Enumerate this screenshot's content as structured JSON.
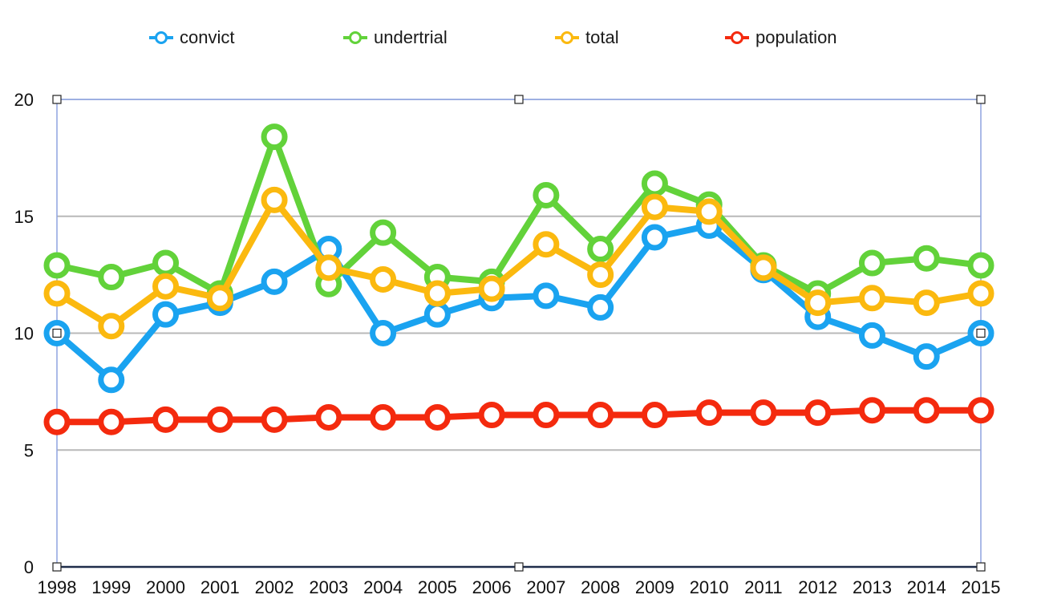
{
  "chart_data": {
    "type": "line",
    "title": "",
    "xlabel": "",
    "ylabel": "",
    "x": [
      "1998",
      "1999",
      "2000",
      "2001",
      "2002",
      "2003",
      "2004",
      "2005",
      "2006",
      "2007",
      "2008",
      "2009",
      "2010",
      "2011",
      "2012",
      "2013",
      "2014",
      "2015"
    ],
    "ylim": [
      0,
      20
    ],
    "yticks": [
      "0",
      "5",
      "10",
      "15",
      "20"
    ],
    "grid": true,
    "legend_position": "top",
    "series": [
      {
        "name": "convict",
        "color": "#1aa3f0",
        "values": [
          10.0,
          8.0,
          10.8,
          11.3,
          12.2,
          13.6,
          10.0,
          10.8,
          11.5,
          11.6,
          11.1,
          14.1,
          14.6,
          12.7,
          10.7,
          9.9,
          9.0,
          10.0
        ]
      },
      {
        "name": "undertrial",
        "color": "#62d23a",
        "values": [
          12.9,
          12.4,
          13.0,
          11.7,
          18.4,
          12.1,
          14.3,
          12.4,
          12.2,
          15.9,
          13.6,
          16.4,
          15.5,
          12.9,
          11.7,
          13.0,
          13.2,
          12.9
        ]
      },
      {
        "name": "total",
        "color": "#fbb90f",
        "values": [
          11.7,
          10.3,
          12.0,
          11.5,
          15.7,
          12.8,
          12.3,
          11.7,
          11.9,
          13.8,
          12.5,
          15.4,
          15.2,
          12.8,
          11.3,
          11.5,
          11.3,
          11.7
        ]
      },
      {
        "name": "population",
        "color": "#f42a0e",
        "values": [
          6.2,
          6.2,
          6.3,
          6.3,
          6.3,
          6.4,
          6.4,
          6.4,
          6.5,
          6.5,
          6.5,
          6.5,
          6.6,
          6.6,
          6.6,
          6.7,
          6.7,
          6.7
        ]
      }
    ]
  }
}
